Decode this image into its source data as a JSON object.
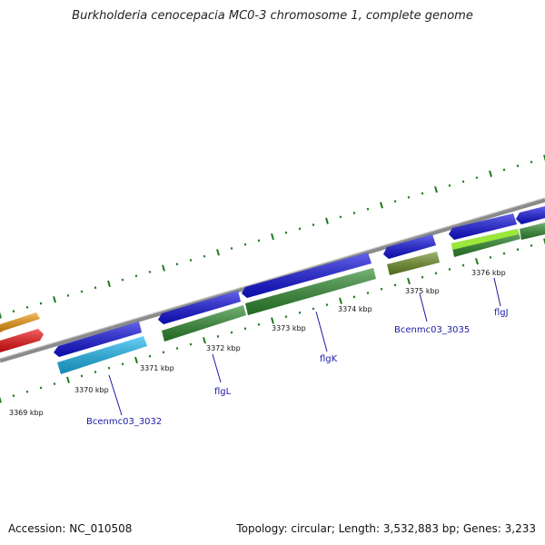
{
  "title": "Burkholderia cenocepacia MC0-3 chromosome 1, complete genome",
  "footer": {
    "accession": "Accession: NC_010508",
    "stats": "Topology: circular; Length: 3,532,883 bp; Genes: 3,233"
  },
  "scale": {
    "unit": "kbp",
    "ticks": [
      "3369 kbp",
      "3370 kbp",
      "3371 kbp",
      "3372 kbp",
      "3373 kbp",
      "3374 kbp",
      "3375 kbp",
      "3376 kbp"
    ]
  },
  "gene_labels": [
    "Bcenmc03_3032",
    "flgL",
    "flgK",
    "Bcenmc03_3035",
    "flgJ"
  ],
  "colors": {
    "backbone": "#808080",
    "forward_gene": "#1010e0",
    "cds_green": "#2e8b2e",
    "cds_cyan": "#1ab8f0",
    "cds_olive": "#6b8e23",
    "cds_lime": "#9be83a",
    "cds_red": "#f01010",
    "cds_orange": "#f39a10",
    "tick": "#1f7a1f",
    "label": "#1a1aa6"
  }
}
